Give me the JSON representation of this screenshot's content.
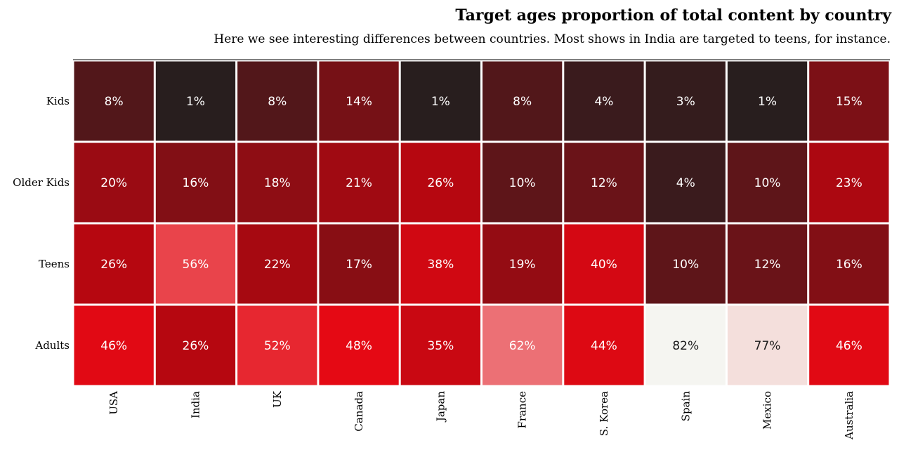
{
  "chart_data": {
    "type": "heatmap",
    "title": "Target ages proportion of total content by country",
    "subtitle": "Here we see interesting differences between countries. Most shows in India are targeted to teens, for instance.",
    "columns": [
      "USA",
      "India",
      "UK",
      "Canada",
      "Japan",
      "France",
      "S. Korea",
      "Spain",
      "Mexico",
      "Australia"
    ],
    "rows": [
      "Kids",
      "Older Kids",
      "Teens",
      "Adults"
    ],
    "values": [
      [
        8,
        1,
        8,
        14,
        1,
        8,
        4,
        3,
        1,
        15
      ],
      [
        20,
        16,
        18,
        21,
        26,
        10,
        12,
        4,
        10,
        23
      ],
      [
        26,
        56,
        22,
        17,
        38,
        19,
        40,
        10,
        12,
        16
      ],
      [
        46,
        26,
        52,
        48,
        35,
        62,
        44,
        82,
        77,
        46
      ]
    ],
    "value_format": "{v}%",
    "colormap": [
      "#221f1f",
      "#b20710",
      "#e50914",
      "#f5f5f1"
    ],
    "colormap_stops": [
      0,
      0.3,
      0.6,
      1.0
    ],
    "vmin": 0,
    "vmax": 0.8,
    "grid": false,
    "legend": "none"
  }
}
